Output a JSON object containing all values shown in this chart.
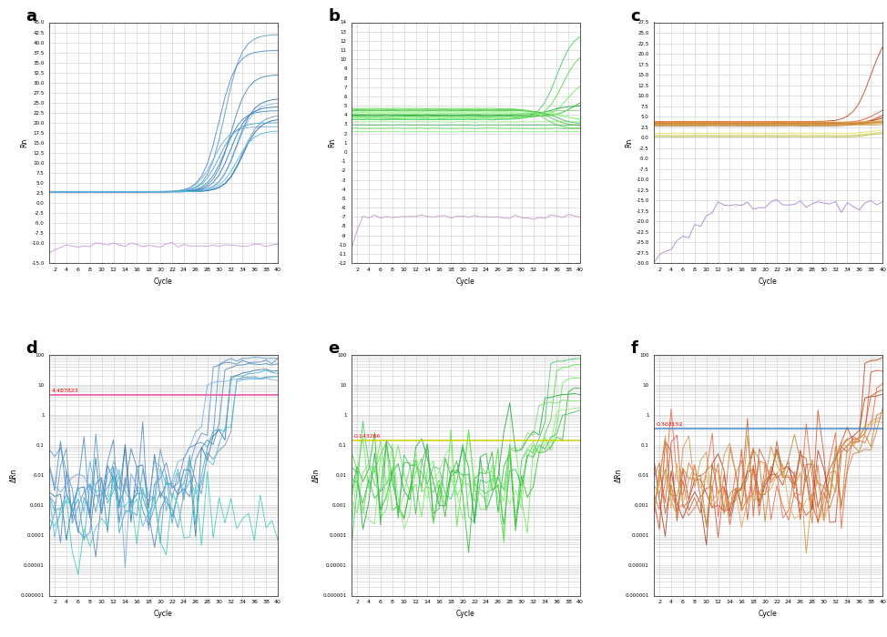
{
  "panels": {
    "a": {
      "label": "a",
      "ylabel": "Rn",
      "xlabel": "Cycle",
      "ylim": [
        -15,
        45
      ],
      "yticks_major": [
        -15,
        -10,
        -7.5,
        -5,
        -2.5,
        0,
        2.5,
        5,
        7.5,
        10,
        12.5,
        15,
        17.5,
        20,
        22.5,
        25,
        27.5,
        30,
        32.5,
        35,
        37.5,
        40,
        42.5,
        45
      ],
      "main_colors": [
        "#5599cc",
        "#4488bb",
        "#3377aa",
        "#6699bb",
        "#5588cc",
        "#77aadd",
        "#88bbee",
        "#2266aa",
        "#3377bb",
        "#4488cc",
        "#44aacc",
        "#55bbdd"
      ],
      "noise_color": "#cc99dd",
      "main_baseline": 2.8,
      "noise_level": -10.5,
      "rise_starts": [
        28,
        29,
        30,
        31,
        27,
        26,
        30,
        31,
        29,
        28,
        27,
        30
      ],
      "final_vals": [
        42,
        32,
        26,
        22,
        38,
        19,
        25,
        21,
        24,
        23,
        20,
        18
      ]
    },
    "b": {
      "label": "b",
      "ylabel": "Rn",
      "xlabel": "Cycle",
      "ylim": [
        -12,
        14
      ],
      "yticks_major": [
        -12,
        -11,
        -10,
        -9,
        -8,
        -7,
        -6,
        -5,
        -4,
        -3,
        -2,
        -1,
        0,
        1,
        2,
        3,
        4,
        5,
        6,
        7,
        8,
        9,
        10,
        11,
        12,
        13,
        14
      ],
      "main_colors": [
        "#44cc66",
        "#55dd44",
        "#66ee55",
        "#33bb33",
        "#22aa44",
        "#77dd66",
        "#88ee77",
        "#99ff88",
        "#44bb55",
        "#55cc44",
        "#66dd55"
      ],
      "noise_color": "#cc99cc",
      "main_baseline": 3.8,
      "noise_level": -7.0,
      "rise_starts": [
        33,
        34,
        35,
        36,
        32,
        31,
        34,
        35,
        33,
        32,
        31
      ],
      "final_vals": [
        13,
        11,
        8,
        6,
        5,
        4.5,
        3.5,
        3.2,
        3.0,
        2.8,
        2.5
      ]
    },
    "c": {
      "label": "c",
      "ylabel": "Rn",
      "xlabel": "Cycle",
      "ylim": [
        -30,
        27.5
      ],
      "yticks_major": [
        -30,
        -27.5,
        -25,
        -22.5,
        -20,
        -17.5,
        -15,
        -12.5,
        -10,
        -7.5,
        -5,
        -2.5,
        0,
        2.5,
        5,
        7.5,
        10,
        12.5,
        15,
        17.5,
        20,
        22.5,
        25,
        27.5
      ],
      "main_colors": [
        "#cc4422",
        "#dd5533",
        "#ee6644",
        "#cc6633",
        "#aa4422",
        "#dd7744",
        "#bb8833",
        "#cc9944",
        "#ddaa55",
        "#eeaa44",
        "#cc9933"
      ],
      "noise_color": "#aa88cc",
      "main_baseline": 3.5,
      "noise_level": -17.0,
      "rise_starts": [
        35,
        36,
        37,
        36,
        35,
        38,
        37,
        36,
        35,
        37,
        36
      ],
      "final_vals": [
        26,
        8,
        7.5,
        6,
        5,
        4.5,
        4.0,
        3.5,
        3.0,
        4.2,
        3.8
      ]
    },
    "d": {
      "label": "d",
      "ylabel": "ΔRn",
      "xlabel": "Cycle",
      "ylim_log": [
        1e-06,
        100
      ],
      "threshold": 4.487823,
      "threshold_color": "#ee44aa",
      "threshold_label": "4.487823",
      "main_colors": [
        "#5599cc",
        "#4488bb",
        "#3377aa",
        "#6699bb",
        "#5588cc",
        "#77aadd",
        "#44aacc",
        "#55bbdd"
      ],
      "noise_color": "#44ccbb",
      "rise_starts": [
        28,
        29,
        30,
        31,
        27,
        26,
        30,
        31
      ],
      "final_vals": [
        80,
        50,
        30,
        20,
        60,
        15,
        25,
        18
      ]
    },
    "e": {
      "label": "e",
      "ylabel": "ΔRn",
      "xlabel": "Cycle",
      "ylim_log": [
        1e-06,
        100
      ],
      "threshold": 0.143266,
      "threshold_color": "#cccc00",
      "threshold_label": "0.143266",
      "main_colors": [
        "#44cc66",
        "#55dd44",
        "#66ee55",
        "#33bb33",
        "#22aa44",
        "#77dd66",
        "#88ee77",
        "#44bb55"
      ],
      "noise_color": "#44ccaa",
      "rise_starts": [
        33,
        34,
        35,
        36,
        32,
        31,
        34,
        35
      ],
      "final_vals": [
        80,
        50,
        20,
        10,
        5,
        3,
        2,
        1.5
      ]
    },
    "f": {
      "label": "f",
      "ylabel": "ΔRn",
      "xlabel": "Cycle",
      "ylim_log": [
        1e-06,
        100
      ],
      "threshold": 0.363152,
      "threshold_color": "#4488cc",
      "threshold_label": "0.363152",
      "main_colors": [
        "#cc4422",
        "#dd5533",
        "#ee6644",
        "#cc6633",
        "#aa4422",
        "#dd7744",
        "#bb8833",
        "#cc9944",
        "#ddaa55"
      ],
      "noise_color": "#cc9944",
      "rise_starts": [
        35,
        36,
        37,
        36,
        35,
        38,
        37,
        36,
        35
      ],
      "final_vals": [
        80,
        40,
        15,
        8,
        5,
        3,
        1.5,
        1,
        0.7
      ]
    }
  },
  "cycles": 40,
  "bg_color": "#ffffff",
  "grid_color": "#cccccc",
  "grid_color2": "#dddddd"
}
